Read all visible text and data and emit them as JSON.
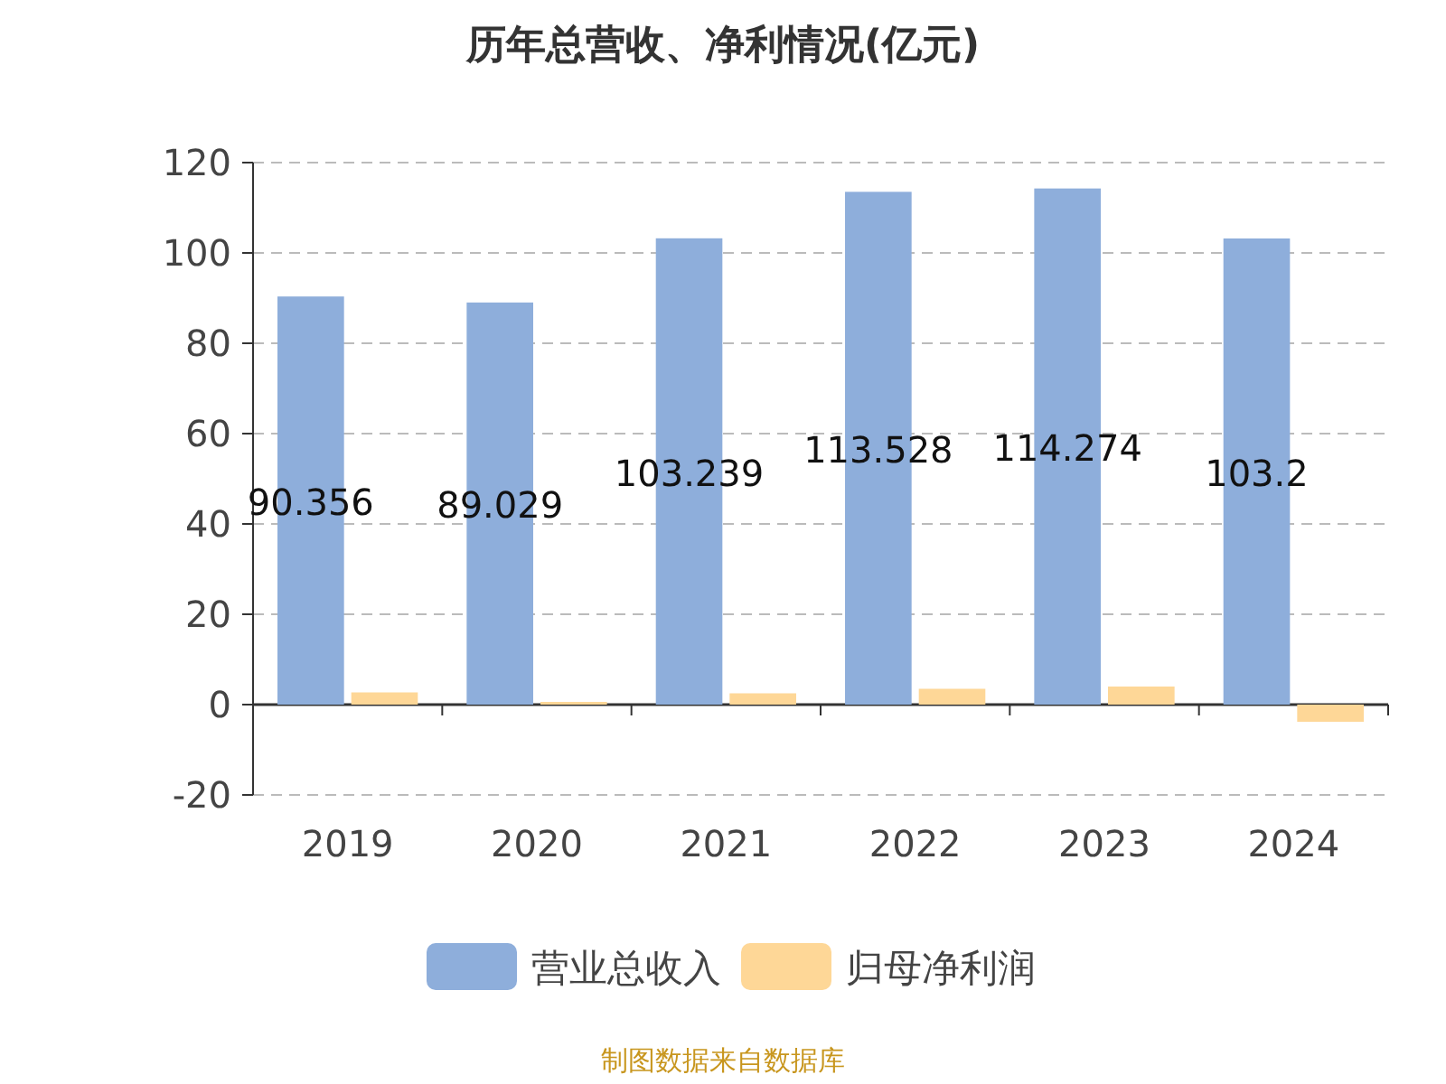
{
  "chart_data": {
    "type": "bar",
    "title": "历年总营收、净利情况(亿元)",
    "categories": [
      "2019",
      "2020",
      "2021",
      "2022",
      "2023",
      "2024"
    ],
    "series": [
      {
        "name": "营业总收入",
        "color": "#8eaedb",
        "values": [
          90.356,
          89.029,
          103.239,
          113.528,
          114.274,
          103.2
        ],
        "value_labels": [
          "90.356",
          "89.029",
          "103.239",
          "113.528",
          "114.274",
          "103.2"
        ]
      },
      {
        "name": "归母净利润",
        "color": "#fed797",
        "values": [
          2.7,
          0.6,
          2.5,
          3.5,
          4.0,
          -3.8
        ]
      }
    ],
    "ylim": [
      -20,
      120
    ],
    "yticks": [
      -20,
      0,
      20,
      40,
      60,
      80,
      100,
      120
    ],
    "grid": "y",
    "legend": "bottom",
    "annotations": [
      "制图数据来自数据库"
    ]
  }
}
